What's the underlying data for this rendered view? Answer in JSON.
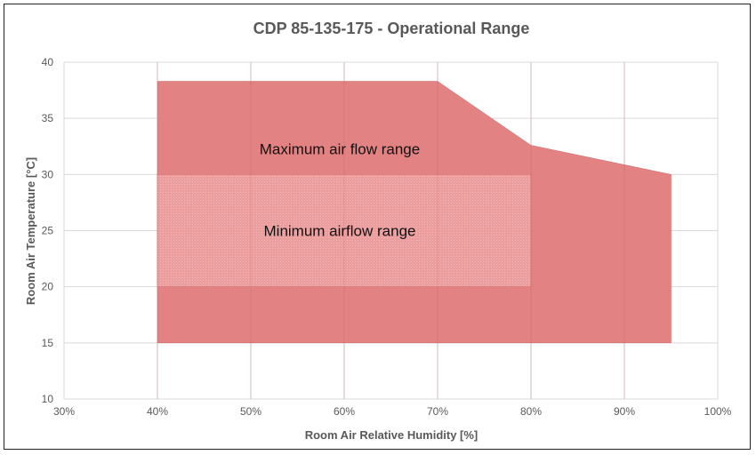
{
  "chart_data": {
    "type": "area",
    "title": "CDP 85-135-175 - Operational Range",
    "xlabel": "Room Air Relative Humidity [%]",
    "ylabel": "Room Air Temperature [°C]",
    "xlim": [
      30,
      100
    ],
    "ylim": [
      10,
      40
    ],
    "x_ticks": [
      30,
      40,
      50,
      60,
      70,
      80,
      90,
      100
    ],
    "x_tick_labels": [
      "30%",
      "40%",
      "50%",
      "60%",
      "70%",
      "80%",
      "90%",
      "100%"
    ],
    "y_ticks": [
      10,
      15,
      20,
      25,
      30,
      35,
      40
    ],
    "y_tick_labels": [
      "10",
      "15",
      "20",
      "25",
      "30",
      "35",
      "40"
    ],
    "grid": true,
    "series": [
      {
        "name": "Maximum air flow range",
        "color": "#e07b7b",
        "polygon": [
          [
            40,
            15
          ],
          [
            40,
            38.3
          ],
          [
            70,
            38.3
          ],
          [
            80,
            32.6
          ],
          [
            95,
            30
          ],
          [
            95,
            15
          ]
        ]
      },
      {
        "name": "Minimum airflow range",
        "color": "#eda0a0",
        "polygon": [
          [
            40,
            20
          ],
          [
            40,
            30
          ],
          [
            80,
            30
          ],
          [
            80,
            20
          ]
        ]
      }
    ],
    "annotations": [
      {
        "text": "Maximum air flow range",
        "x": 60,
        "y": 32.3
      },
      {
        "text": "Minimum airflow range",
        "x": 60,
        "y": 25
      }
    ]
  }
}
